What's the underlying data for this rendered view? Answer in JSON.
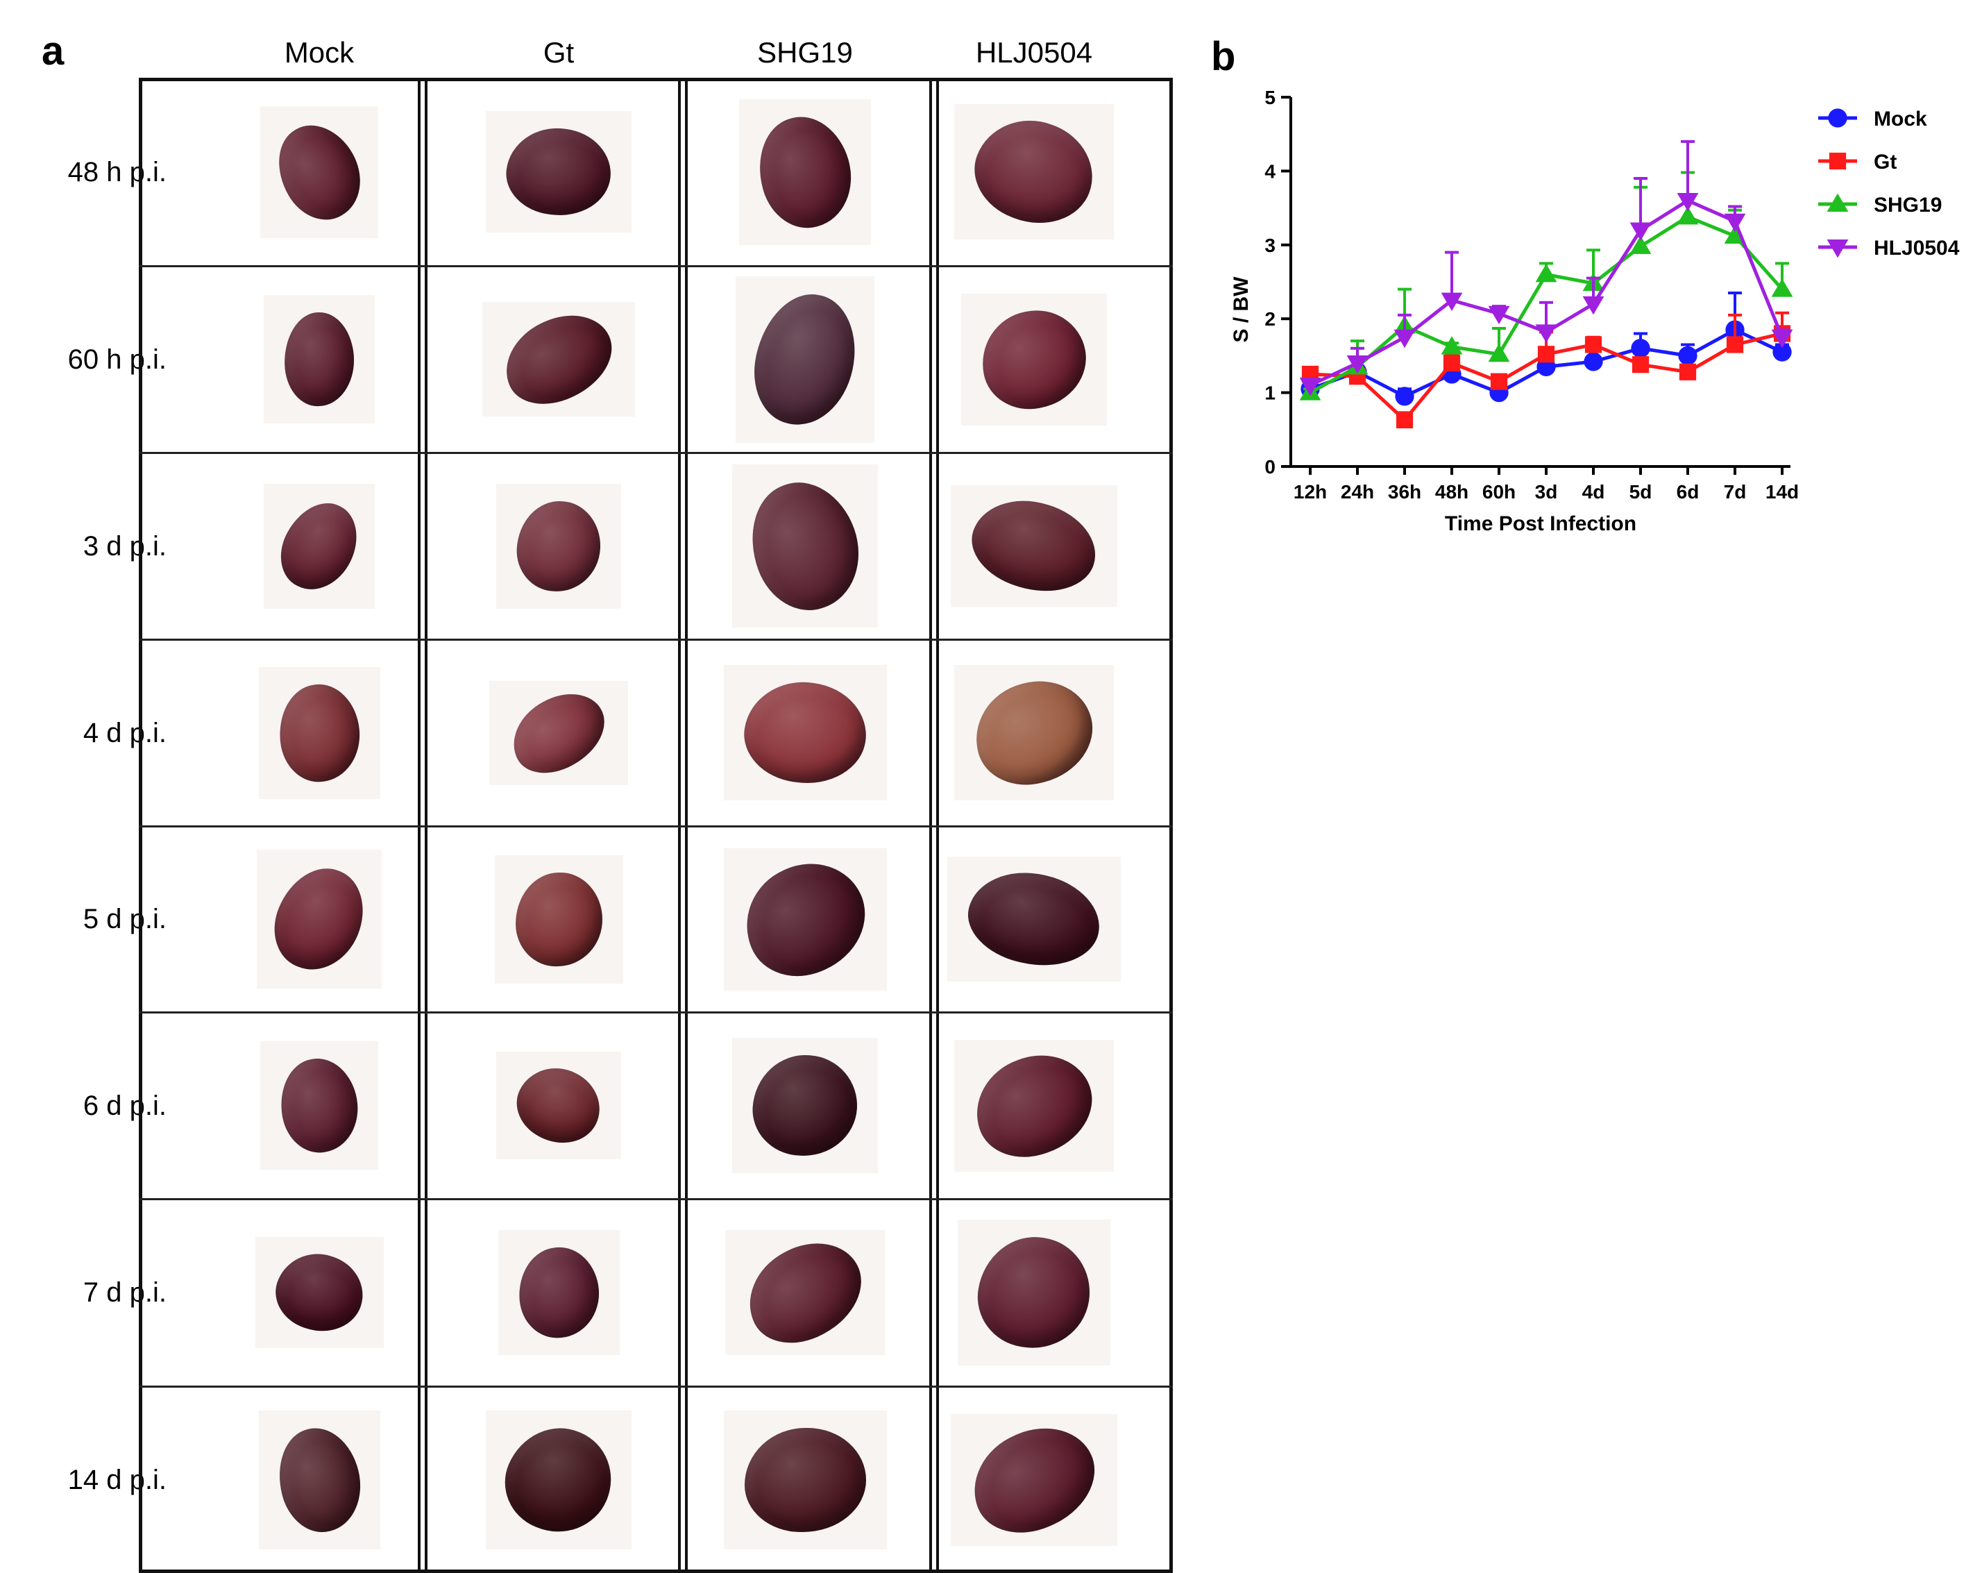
{
  "panel_a": {
    "letter": "a",
    "columns": [
      "Mock",
      "Gt",
      "SHG19",
      "HLJ0504"
    ],
    "rows": [
      "48 h p.i.",
      "60 h p.i.",
      "3 d p.i.",
      "4 d p.i.",
      "5 d p.i.",
      "6 d p.i.",
      "7 d p.i.",
      "14 d p.i."
    ]
  },
  "panel_b": {
    "letter": "b"
  },
  "chart_data": {
    "type": "line",
    "title": "",
    "xlabel": "Time Post Infection",
    "ylabel": "S / BW",
    "categories": [
      "12h",
      "24h",
      "36h",
      "48h",
      "60h",
      "3d",
      "4d",
      "5d",
      "6d",
      "7d",
      "14d"
    ],
    "ylim": [
      0,
      5
    ],
    "yticks": [
      "0",
      "1",
      "2",
      "3",
      "4",
      "5"
    ],
    "grid": false,
    "legend_position": "right",
    "series": [
      {
        "name": "Mock",
        "color": "#1a1aff",
        "marker": "circle",
        "values": [
          1.05,
          1.28,
          0.95,
          1.25,
          1.0,
          1.35,
          1.42,
          1.6,
          1.5,
          1.85,
          1.55
        ],
        "errors": [
          0.08,
          0.08,
          0.1,
          0.3,
          0.1,
          0.1,
          0.05,
          0.2,
          0.15,
          0.5,
          0.1
        ]
      },
      {
        "name": "Gt",
        "color": "#ff1a1a",
        "marker": "square",
        "values": [
          1.25,
          1.22,
          0.63,
          1.4,
          1.15,
          1.52,
          1.65,
          1.38,
          1.28,
          1.65,
          1.8
        ],
        "errors": [
          0.08,
          0.1,
          0.1,
          0.1,
          0.05,
          0.3,
          0.1,
          0.08,
          0.05,
          0.4,
          0.28
        ]
      },
      {
        "name": "SHG19",
        "color": "#1fbf1f",
        "marker": "triangle-up",
        "values": [
          1.0,
          1.35,
          1.9,
          1.62,
          1.52,
          2.6,
          2.48,
          2.98,
          3.38,
          3.12,
          2.4
        ],
        "errors": [
          0.05,
          0.35,
          0.5,
          0.05,
          0.35,
          0.15,
          0.45,
          0.8,
          0.6,
          0.35,
          0.35
        ]
      },
      {
        "name": "HLJ0504",
        "color": "#a020e0",
        "marker": "triangle-down",
        "values": [
          1.1,
          1.4,
          1.75,
          2.25,
          2.07,
          1.82,
          2.2,
          3.2,
          3.6,
          3.32,
          1.75
        ],
        "errors": [
          0.05,
          0.2,
          0.3,
          0.65,
          0.1,
          0.4,
          0.35,
          0.7,
          0.8,
          0.2,
          0.1
        ]
      }
    ]
  }
}
